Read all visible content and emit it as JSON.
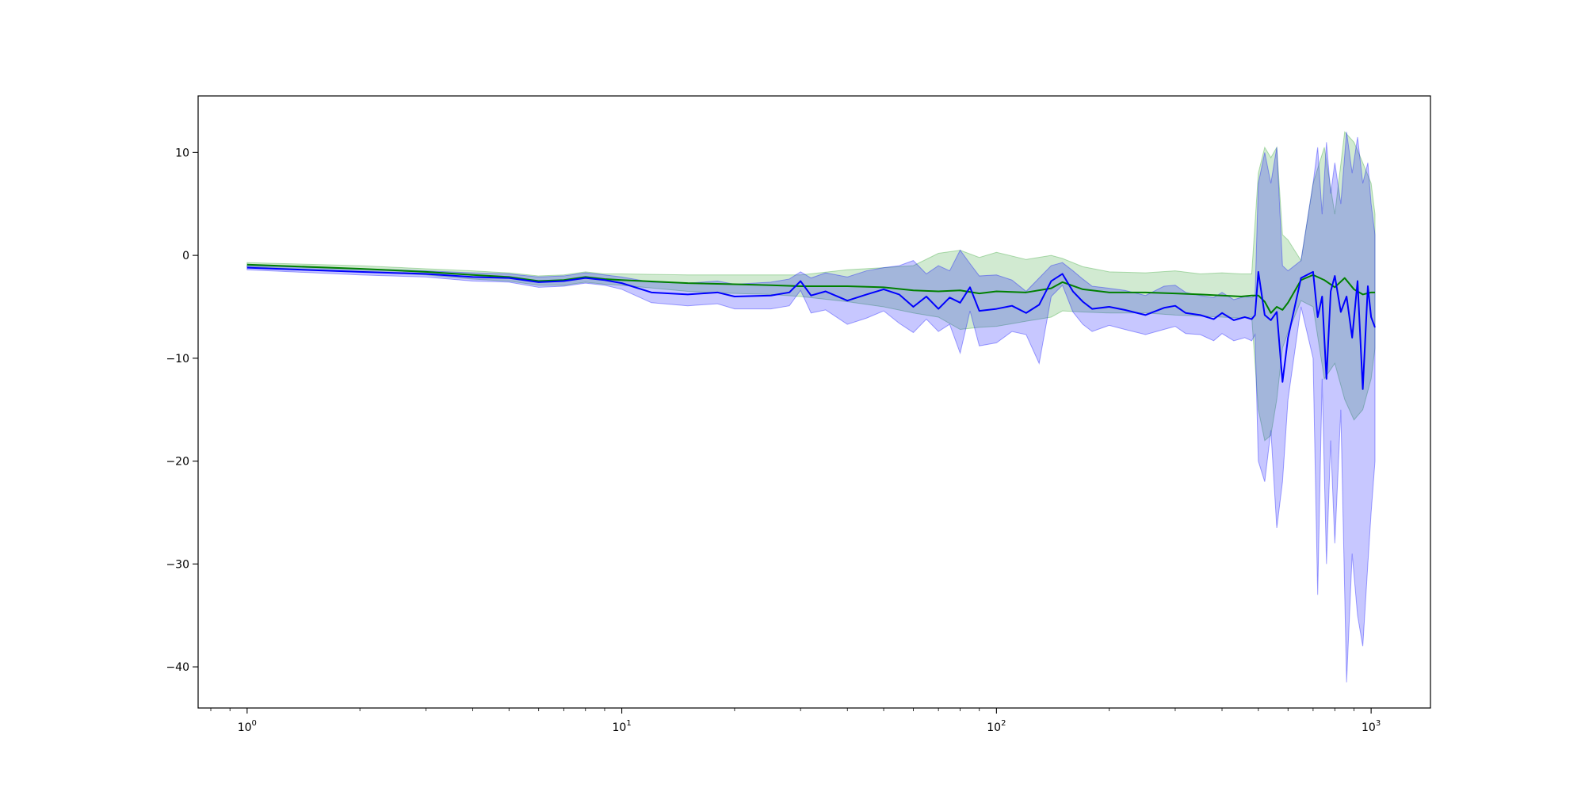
{
  "chart_data": {
    "type": "line",
    "title": "",
    "xlabel": "",
    "ylabel": "",
    "xscale": "log",
    "xlim": [
      0.74,
      1440
    ],
    "ylim": [
      -44,
      15.5
    ],
    "grid": false,
    "legend": "none",
    "x_ticks": [
      {
        "value": 1,
        "base": "10",
        "exp": "0"
      },
      {
        "value": 10,
        "base": "10",
        "exp": "1"
      },
      {
        "value": 100,
        "base": "10",
        "exp": "2"
      },
      {
        "value": 1000,
        "base": "10",
        "exp": "3"
      }
    ],
    "y_ticks": [
      {
        "value": 10,
        "label": "10"
      },
      {
        "value": 0,
        "label": "0"
      },
      {
        "value": -10,
        "label": "−10"
      },
      {
        "value": -20,
        "label": "−20"
      },
      {
        "value": -30,
        "label": "−30"
      },
      {
        "value": -40,
        "label": "−40"
      }
    ],
    "series": [
      {
        "color": "#008000",
        "band_color": "#2ca02c",
        "x": [
          1,
          2,
          3,
          4,
          5,
          6,
          7,
          8,
          9,
          10,
          15,
          20,
          25,
          30,
          40,
          50,
          60,
          70,
          80,
          90,
          100,
          120,
          140,
          150,
          170,
          200,
          250,
          300,
          350,
          400,
          450,
          480,
          500,
          520,
          540,
          560,
          580,
          600,
          650,
          700,
          750,
          800,
          850,
          900,
          950,
          1000,
          1024
        ],
        "y": [
          -0.9,
          -1.3,
          -1.6,
          -1.9,
          -2.1,
          -2.5,
          -2.4,
          -2.1,
          -2.3,
          -2.4,
          -2.7,
          -2.8,
          -2.9,
          -3.0,
          -3.0,
          -3.1,
          -3.4,
          -3.5,
          -3.4,
          -3.7,
          -3.5,
          -3.6,
          -3.2,
          -2.6,
          -3.3,
          -3.6,
          -3.6,
          -3.7,
          -3.8,
          -3.9,
          -4.0,
          -3.9,
          -3.9,
          -4.5,
          -5.6,
          -5.0,
          -5.3,
          -4.6,
          -2.4,
          -1.9,
          -2.4,
          -3.1,
          -2.2,
          -3.3,
          -3.8,
          -3.6,
          -3.6
        ],
        "upper": [
          -0.7,
          -1.0,
          -1.3,
          -1.5,
          -1.7,
          -2.0,
          -1.9,
          -1.6,
          -1.8,
          -1.8,
          -1.9,
          -1.9,
          -1.9,
          -1.9,
          -1.4,
          -1.2,
          -1.0,
          0.2,
          0.5,
          -0.2,
          0.3,
          -0.4,
          0.0,
          -0.3,
          -1.1,
          -1.6,
          -1.7,
          -1.5,
          -1.8,
          -1.7,
          -1.8,
          -1.8,
          8.0,
          10.5,
          9.5,
          10.5,
          2.0,
          1.5,
          -0.5,
          7.0,
          10.5,
          4.0,
          12.0,
          11.0,
          9.0,
          7.0,
          4.0
        ],
        "lower": [
          -1.1,
          -1.6,
          -1.9,
          -2.3,
          -2.5,
          -2.9,
          -2.9,
          -2.6,
          -2.8,
          -2.9,
          -3.5,
          -3.7,
          -3.8,
          -4.0,
          -4.5,
          -5.0,
          -5.6,
          -6.0,
          -7.2,
          -7.0,
          -6.9,
          -6.4,
          -6.0,
          -5.4,
          -5.5,
          -5.6,
          -5.6,
          -5.8,
          -5.9,
          -6.0,
          -6.1,
          -6.0,
          -15.0,
          -18.0,
          -17.5,
          -14.0,
          -9.0,
          -7.5,
          -4.4,
          -5.0,
          -12.0,
          -10.5,
          -14.0,
          -16.0,
          -15.0,
          -12.0,
          -9.0
        ]
      },
      {
        "color": "#0000ff",
        "band_color": "#0000ff",
        "x": [
          1,
          2,
          3,
          4,
          5,
          6,
          7,
          8,
          9,
          10,
          12,
          15,
          18,
          20,
          25,
          28,
          30,
          32,
          35,
          40,
          45,
          50,
          55,
          60,
          65,
          70,
          75,
          80,
          85,
          90,
          100,
          110,
          120,
          130,
          140,
          150,
          160,
          170,
          180,
          200,
          220,
          250,
          280,
          300,
          320,
          350,
          380,
          400,
          430,
          460,
          480,
          490,
          500,
          520,
          540,
          560,
          580,
          600,
          650,
          700,
          720,
          740,
          760,
          780,
          800,
          830,
          860,
          890,
          920,
          950,
          980,
          1000,
          1024
        ],
        "y": [
          -1.2,
          -1.6,
          -1.8,
          -2.1,
          -2.2,
          -2.6,
          -2.5,
          -2.2,
          -2.4,
          -2.7,
          -3.6,
          -3.8,
          -3.6,
          -4.0,
          -3.9,
          -3.6,
          -2.5,
          -3.9,
          -3.5,
          -4.4,
          -3.8,
          -3.3,
          -3.8,
          -5.0,
          -4.0,
          -5.2,
          -4.1,
          -4.6,
          -3.1,
          -5.4,
          -5.2,
          -4.9,
          -5.6,
          -4.8,
          -2.5,
          -1.8,
          -3.5,
          -4.5,
          -5.2,
          -5.0,
          -5.3,
          -5.8,
          -5.1,
          -4.9,
          -5.6,
          -5.8,
          -6.2,
          -5.6,
          -6.3,
          -6.0,
          -6.2,
          -5.8,
          -1.6,
          -5.8,
          -6.3,
          -5.5,
          -12.3,
          -8.0,
          -2.2,
          -1.6,
          -6.0,
          -4.0,
          -12.0,
          -3.5,
          -2.0,
          -5.5,
          -4.0,
          -8.0,
          -2.5,
          -13.0,
          -3.0,
          -6.0,
          -7.0
        ],
        "upper": [
          -1.0,
          -1.3,
          -1.5,
          -1.7,
          -1.8,
          -2.1,
          -2.0,
          -1.7,
          -1.9,
          -2.1,
          -2.6,
          -2.7,
          -2.5,
          -2.8,
          -2.6,
          -2.3,
          -1.6,
          -2.2,
          -1.7,
          -2.1,
          -1.5,
          -1.2,
          -1.0,
          -0.5,
          -1.8,
          -1.0,
          -1.5,
          0.5,
          -0.8,
          -2.0,
          -1.9,
          -2.4,
          -3.5,
          -2.2,
          -1.0,
          -0.7,
          -1.5,
          -2.3,
          -3.0,
          -3.2,
          -3.4,
          -3.9,
          -3.0,
          -2.9,
          -3.6,
          -3.9,
          -4.1,
          -3.6,
          -4.3,
          -4.0,
          -4.1,
          -3.9,
          7.0,
          10.0,
          7.0,
          10.5,
          -1.0,
          -1.5,
          -0.5,
          7.0,
          10.5,
          4.0,
          11.0,
          6.0,
          9.0,
          5.0,
          12.0,
          8.0,
          11.5,
          7.0,
          9.0,
          5.0,
          2.0
        ],
        "lower": [
          -1.4,
          -1.9,
          -2.1,
          -2.5,
          -2.6,
          -3.1,
          -3.0,
          -2.7,
          -2.9,
          -3.3,
          -4.6,
          -4.9,
          -4.7,
          -5.2,
          -5.2,
          -4.9,
          -3.4,
          -5.6,
          -5.3,
          -6.7,
          -6.1,
          -5.4,
          -6.6,
          -7.5,
          -6.2,
          -7.4,
          -6.7,
          -9.5,
          -5.4,
          -8.8,
          -8.5,
          -7.4,
          -7.7,
          -10.5,
          -4.0,
          -2.9,
          -5.5,
          -6.7,
          -7.4,
          -6.8,
          -7.2,
          -7.7,
          -7.2,
          -6.9,
          -7.6,
          -7.7,
          -8.3,
          -7.6,
          -8.3,
          -8.0,
          -8.3,
          -7.7,
          -20.0,
          -22.0,
          -17.0,
          -26.5,
          -22.0,
          -14.0,
          -5.0,
          -10.0,
          -33.0,
          -12.0,
          -30.0,
          -18.0,
          -28.0,
          -15.0,
          -41.5,
          -29.0,
          -35.0,
          -38.0,
          -30.0,
          -25.0,
          -20.0
        ]
      }
    ]
  }
}
